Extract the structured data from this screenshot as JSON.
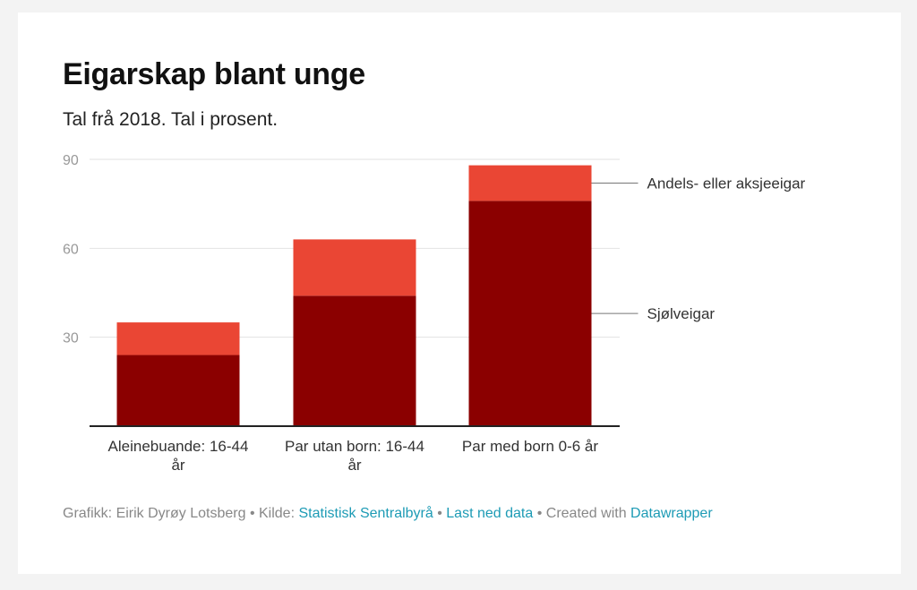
{
  "header": {
    "title": "Eigarskap blant unge",
    "subtitle": "Tal frå 2018. Tal i prosent."
  },
  "chart_data": {
    "type": "bar",
    "stacked": true,
    "categories": [
      "Aleinebuande: 16-44 år",
      "Par utan born: 16-44 år",
      "Par med born 0-6 år"
    ],
    "category_lines": [
      [
        "Aleinebuande: 16-44",
        "år"
      ],
      [
        "Par utan born: 16-44",
        "år"
      ],
      [
        "Par med born 0-6 år"
      ]
    ],
    "series": [
      {
        "name": "Sjølveigar",
        "values": [
          24,
          44,
          76
        ],
        "color": "#8b0000"
      },
      {
        "name": "Andels- eller aksjeeigar",
        "values": [
          11,
          19,
          12
        ],
        "color": "#ea4634"
      }
    ],
    "y_ticks": [
      30,
      60,
      90
    ],
    "ylim": [
      0,
      90
    ],
    "grid": true,
    "legend": "direct labels right of last bar"
  },
  "footer": {
    "credit": "Grafikk: Eirik Dyrøy Lotsberg",
    "source_label": "Kilde:",
    "source_link": "Statistisk Sentralbyrå",
    "download_link": "Last ned data",
    "created_with": "Created with",
    "tool_link": "Datawrapper",
    "separator": "•"
  }
}
